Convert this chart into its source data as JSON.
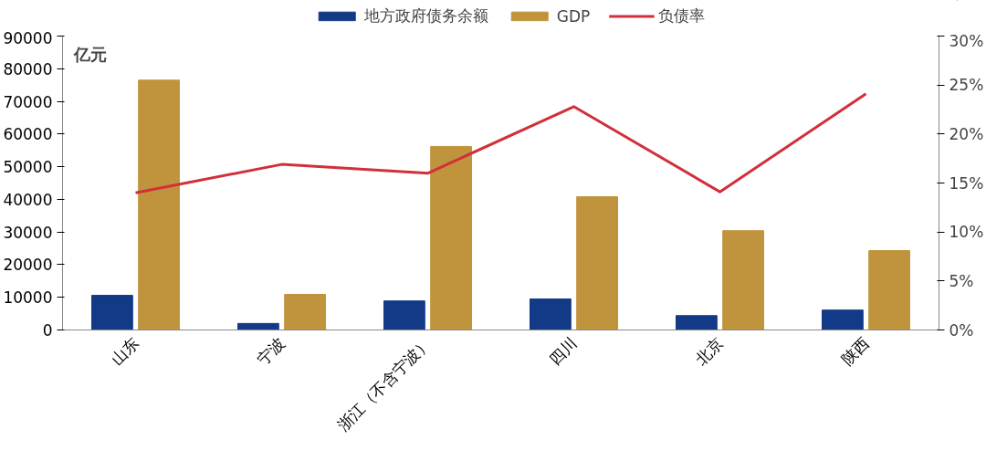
{
  "chart_data": {
    "type": "bar",
    "categories": [
      "山东",
      "宁波",
      "浙江（不含宁波）",
      "四川",
      "北京",
      "陕西"
    ],
    "series": [
      {
        "name": "地方政府债务余额",
        "color": "#133a87",
        "values": [
          10600,
          2000,
          8900,
          9500,
          4400,
          6100
        ]
      },
      {
        "name": "GDP",
        "color": "#c0943c",
        "values": [
          76500,
          10900,
          56200,
          40800,
          30400,
          24300
        ]
      },
      {
        "name": "负债率",
        "type": "line",
        "axis": "y2",
        "color": "#d1303a",
        "values": [
          14.0,
          16.9,
          16.0,
          22.8,
          14.1,
          24.1
        ]
      }
    ],
    "ylim": [
      0,
      90000
    ],
    "yticks": [
      0,
      10000,
      20000,
      30000,
      40000,
      50000,
      60000,
      70000,
      80000,
      90000
    ],
    "y2lim": [
      0,
      30
    ],
    "y2ticks": [
      {
        "value": 0,
        "label": "0%"
      },
      {
        "value": 5,
        "label": "5%"
      },
      {
        "value": 10,
        "label": "10%"
      },
      {
        "value": 15,
        "label": "15%"
      },
      {
        "value": 20,
        "label": "20%"
      },
      {
        "value": 25,
        "label": "25%"
      },
      {
        "value": 30,
        "label": "30%"
      }
    ],
    "annotations": [
      "亿元"
    ],
    "legend": "top",
    "grid": false,
    "marker": "none"
  }
}
